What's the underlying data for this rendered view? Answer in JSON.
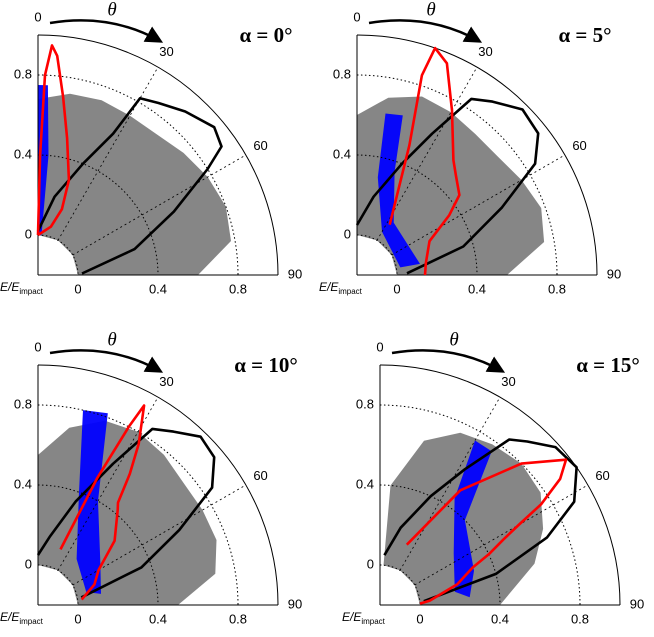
{
  "chart_data": [
    {
      "type": "polar",
      "title": "α = 0°",
      "theta_label": "θ",
      "axis_label": "E/E",
      "axis_label_sub": "impact",
      "xlim": [
        0,
        90
      ],
      "xticks": [
        0,
        30,
        60,
        90
      ],
      "ylim": [
        -0.2,
        1.0
      ],
      "yticks": [
        0,
        0.4,
        0.8
      ],
      "grid": true,
      "series": [
        {
          "color": "#808080",
          "fill": true,
          "theta": [
            0,
            0,
            10,
            20,
            30,
            40,
            50,
            60,
            70,
            80,
            90,
            90,
            60,
            30
          ],
          "r": [
            0,
            0.68,
            0.72,
            0.73,
            0.72,
            0.72,
            0.75,
            0.78,
            0.8,
            0.78,
            0.6,
            0,
            0,
            0
          ]
        },
        {
          "color": "#0000ff",
          "fill": true,
          "theta": [
            0,
            0,
            3,
            5,
            5
          ],
          "r": [
            0,
            0.75,
            0.75,
            0.4,
            0
          ]
        },
        {
          "color": "#000000",
          "fill": false,
          "theta": [
            88,
            75,
            65,
            58,
            55,
            50,
            42,
            35,
            30,
            28,
            22,
            12,
            0
          ],
          "r": [
            0.02,
            0.3,
            0.55,
            0.8,
            0.92,
            0.95,
            0.9,
            0.85,
            0.82,
            0.6,
            0.4,
            0.2,
            0.02
          ]
        },
        {
          "color": "#ff0000",
          "fill": false,
          "theta": [
            0,
            1,
            2,
            3.5,
            5,
            8,
            12,
            18,
            20,
            15,
            0
          ],
          "r": [
            0,
            0.4,
            0.8,
            0.95,
            0.9,
            0.7,
            0.5,
            0.3,
            0.15,
            0.05,
            0
          ]
        }
      ]
    },
    {
      "type": "polar",
      "title": "α = 5°",
      "theta_label": "θ",
      "axis_label": "E/E",
      "axis_label_sub": "impact",
      "xlim": [
        0,
        90
      ],
      "xticks": [
        0,
        30,
        60,
        90
      ],
      "ylim": [
        -0.2,
        1.0
      ],
      "yticks": [
        0,
        0.4,
        0.8
      ],
      "grid": true,
      "series": [
        {
          "color": "#808080",
          "fill": true,
          "theta": [
            0,
            0,
            10,
            20,
            30,
            40,
            50,
            60,
            70,
            80,
            90,
            90,
            60,
            30
          ],
          "r": [
            0,
            0.6,
            0.7,
            0.75,
            0.74,
            0.72,
            0.72,
            0.75,
            0.78,
            0.75,
            0.55,
            0,
            0,
            0
          ]
        },
        {
          "color": "#0000ff",
          "fill": true,
          "theta": [
            10,
            16,
            20,
            35,
            80,
            80,
            30,
            12
          ],
          "r": [
            0.62,
            0.63,
            0.35,
            0.12,
            0.12,
            0.02,
            0.05,
            0.3
          ]
        },
        {
          "color": "#000000",
          "fill": false,
          "theta": [
            88,
            75,
            65,
            58,
            52,
            45,
            38,
            33,
            28,
            22,
            12,
            0
          ],
          "r": [
            0.05,
            0.35,
            0.6,
            0.85,
            0.95,
            0.97,
            0.9,
            0.85,
            0.6,
            0.4,
            0.2,
            0.05
          ]
        },
        {
          "color": "#ff0000",
          "fill": false,
          "theta": [
            33,
            22,
            18,
            19,
            23,
            30,
            40,
            45,
            52,
            57,
            65,
            80,
            90
          ],
          "r": [
            0.1,
            0.5,
            0.85,
            1.0,
            0.95,
            0.75,
            0.55,
            0.5,
            0.45,
            0.35,
            0.2,
            0.15,
            0.14
          ]
        }
      ]
    },
    {
      "type": "polar",
      "title": "α = 10°",
      "theta_label": "θ",
      "axis_label": "E/E",
      "axis_label_sub": "impact",
      "xlim": [
        0,
        90
      ],
      "xticks": [
        0,
        30,
        60,
        90
      ],
      "ylim": [
        -0.2,
        1.0
      ],
      "yticks": [
        0,
        0.4,
        0.8
      ],
      "grid": true,
      "series": [
        {
          "color": "#808080",
          "fill": true,
          "theta": [
            0,
            0,
            10,
            20,
            30,
            40,
            50,
            60,
            70,
            80,
            90,
            90,
            60,
            30
          ],
          "r": [
            0,
            0.55,
            0.7,
            0.78,
            0.8,
            0.78,
            0.75,
            0.75,
            0.75,
            0.7,
            0.5,
            0,
            0,
            0
          ]
        },
        {
          "color": "#0000ff",
          "fill": true,
          "theta": [
            13,
            20,
            30,
            55,
            80,
            75,
            40,
            20
          ],
          "r": [
            0.8,
            0.82,
            0.4,
            0.18,
            0.12,
            0.05,
            0.1,
            0.4
          ]
        },
        {
          "color": "#000000",
          "fill": false,
          "theta": [
            80,
            70,
            62,
            56,
            50,
            44,
            38,
            33,
            28,
            20,
            10,
            0
          ],
          "r": [
            0.02,
            0.35,
            0.6,
            0.85,
            0.95,
            0.97,
            0.9,
            0.85,
            0.6,
            0.35,
            0.15,
            0.05
          ]
        },
        {
          "color": "#ff0000",
          "fill": false,
          "theta": [
            22,
            25,
            27,
            28,
            32,
            35,
            38,
            40,
            50,
            60,
            70,
            83
          ],
          "r": [
            0.1,
            0.5,
            0.8,
            0.93,
            0.75,
            0.6,
            0.45,
            0.42,
            0.3,
            0.15,
            0.1,
            0.02
          ]
        }
      ]
    },
    {
      "type": "polar",
      "title": "α = 15°",
      "theta_label": "θ",
      "axis_label": "E/E",
      "axis_label_sub": "impact",
      "xlim": [
        0,
        90
      ],
      "xticks": [
        0,
        30,
        60,
        90
      ],
      "ylim": [
        -0.2,
        1.0
      ],
      "yticks": [
        0,
        0.4,
        0.8
      ],
      "grid": true,
      "series": [
        {
          "color": "#808080",
          "fill": true,
          "theta": [
            5,
            5,
            15,
            25,
            35,
            45,
            55,
            65,
            75,
            90,
            90,
            60,
            30
          ],
          "r": [
            0,
            0.4,
            0.65,
            0.75,
            0.78,
            0.8,
            0.78,
            0.7,
            0.6,
            0.4,
            0,
            0,
            0
          ]
        },
        {
          "color": "#0000ff",
          "fill": true,
          "theta": [
            30,
            36,
            45,
            70,
            85,
            80,
            55,
            35
          ],
          "r": [
            0.75,
            0.75,
            0.4,
            0.3,
            0.25,
            0.18,
            0.25,
            0.45
          ]
        },
        {
          "color": "#000000",
          "fill": false,
          "theta": [
            85,
            75,
            68,
            62,
            55,
            48,
            42,
            38,
            32,
            25,
            15,
            5
          ],
          "r": [
            0.02,
            0.4,
            0.7,
            0.9,
            1.0,
            0.98,
            0.9,
            0.85,
            0.6,
            0.4,
            0.2,
            0.05
          ]
        },
        {
          "color": "#ff0000",
          "fill": false,
          "theta": [
            24,
            35,
            45,
            52,
            55,
            58,
            60,
            62,
            65,
            68,
            75,
            85,
            88
          ],
          "r": [
            0.13,
            0.5,
            0.8,
            0.98,
            0.9,
            0.75,
            0.6,
            0.5,
            0.4,
            0.3,
            0.2,
            0.05,
            0
          ]
        }
      ]
    }
  ]
}
